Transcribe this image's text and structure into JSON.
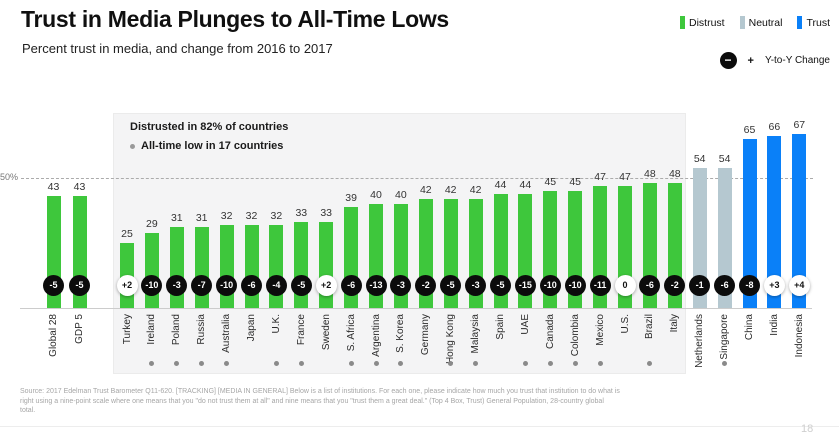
{
  "header": {
    "title": "Trust in Media Plunges to All-Time Lows",
    "subtitle": "Percent trust in media, and change from 2016 to 2017"
  },
  "legend": {
    "items": [
      {
        "label": "Distrust",
        "color": "#3ec73c"
      },
      {
        "label": "Neutral",
        "color": "#b5c8d0"
      },
      {
        "label": "Trust",
        "color": "#0a80f8"
      }
    ],
    "yoy_minus": "−",
    "yoy_plus": "+",
    "yoy_label": "Y-to-Y Change"
  },
  "annotation": {
    "headline": "Distrusted in 82% of countries",
    "bullet": "All-time low in 17 countries"
  },
  "chart_data": {
    "type": "bar",
    "title": "Percent trust in media, and change from 2016 to 2017",
    "ylabel": "Percent trust in media",
    "ylim": [
      0,
      70
    ],
    "gridline_value": 50,
    "gridline_label": "50%",
    "group_colors": {
      "distrust": "#3ec73c",
      "neutral": "#b5c8d0",
      "trust": "#0a80f8"
    },
    "countries": [
      {
        "name": "Global 28",
        "trust": 43,
        "change": -5,
        "group": "distrust",
        "all_time_low": false
      },
      {
        "name": "GDP 5",
        "trust": 43,
        "change": -5,
        "group": "distrust",
        "all_time_low": false
      },
      {
        "name": "Turkey",
        "trust": 25,
        "change": 2,
        "group": "distrust",
        "all_time_low": false
      },
      {
        "name": "Ireland",
        "trust": 29,
        "change": -10,
        "group": "distrust",
        "all_time_low": true
      },
      {
        "name": "Poland",
        "trust": 31,
        "change": -3,
        "group": "distrust",
        "all_time_low": true
      },
      {
        "name": "Russia",
        "trust": 31,
        "change": -7,
        "group": "distrust",
        "all_time_low": true
      },
      {
        "name": "Australia",
        "trust": 32,
        "change": -10,
        "group": "distrust",
        "all_time_low": true
      },
      {
        "name": "Japan",
        "trust": 32,
        "change": -6,
        "group": "distrust",
        "all_time_low": false
      },
      {
        "name": "U.K.",
        "trust": 32,
        "change": -4,
        "group": "distrust",
        "all_time_low": true
      },
      {
        "name": "France",
        "trust": 33,
        "change": -5,
        "group": "distrust",
        "all_time_low": true
      },
      {
        "name": "Sweden",
        "trust": 33,
        "change": 2,
        "group": "distrust",
        "all_time_low": false
      },
      {
        "name": "S. Africa",
        "trust": 39,
        "change": -6,
        "group": "distrust",
        "all_time_low": true
      },
      {
        "name": "Argentina",
        "trust": 40,
        "change": -13,
        "group": "distrust",
        "all_time_low": true
      },
      {
        "name": "S. Korea",
        "trust": 40,
        "change": -3,
        "group": "distrust",
        "all_time_low": true
      },
      {
        "name": "Germany",
        "trust": 42,
        "change": -2,
        "group": "distrust",
        "all_time_low": false
      },
      {
        "name": "Hong Kong",
        "trust": 42,
        "change": -5,
        "group": "distrust",
        "all_time_low": true
      },
      {
        "name": "Malaysia",
        "trust": 42,
        "change": -3,
        "group": "distrust",
        "all_time_low": true
      },
      {
        "name": "Spain",
        "trust": 44,
        "change": -5,
        "group": "distrust",
        "all_time_low": false
      },
      {
        "name": "UAE",
        "trust": 44,
        "change": -15,
        "group": "distrust",
        "all_time_low": true
      },
      {
        "name": "Canada",
        "trust": 45,
        "change": -10,
        "group": "distrust",
        "all_time_low": true
      },
      {
        "name": "Colombia",
        "trust": 45,
        "change": -10,
        "group": "distrust",
        "all_time_low": true
      },
      {
        "name": "Mexico",
        "trust": 47,
        "change": -11,
        "group": "distrust",
        "all_time_low": true
      },
      {
        "name": "U.S.",
        "trust": 47,
        "change": 0,
        "group": "distrust",
        "all_time_low": false
      },
      {
        "name": "Brazil",
        "trust": 48,
        "change": -6,
        "group": "distrust",
        "all_time_low": true
      },
      {
        "name": "Italy",
        "trust": 48,
        "change": -2,
        "group": "distrust",
        "all_time_low": false
      },
      {
        "name": "Netherlands",
        "trust": 54,
        "change": -1,
        "group": "neutral",
        "all_time_low": false
      },
      {
        "name": "Singapore",
        "trust": 54,
        "change": -6,
        "group": "neutral",
        "all_time_low": true
      },
      {
        "name": "China",
        "trust": 65,
        "change": -8,
        "group": "trust",
        "all_time_low": false
      },
      {
        "name": "India",
        "trust": 66,
        "change": 3,
        "group": "trust",
        "all_time_low": false
      },
      {
        "name": "Indonesia",
        "trust": 67,
        "change": 4,
        "group": "trust",
        "all_time_low": false
      }
    ]
  },
  "footer": {
    "source": "Source: 2017 Edelman Trust Barometer Q11-620. [TRACKING] [MEDIA IN GENERAL] Below is a list of institutions. For each one, please indicate how much you trust that institution to do what is right using a nine-point scale where one means that you \"do not trust them at all\" and nine means that you \"trust them a great deal.\" (Top 4 Box, Trust) General Population, 28-country global total.",
    "page_number": "18"
  }
}
